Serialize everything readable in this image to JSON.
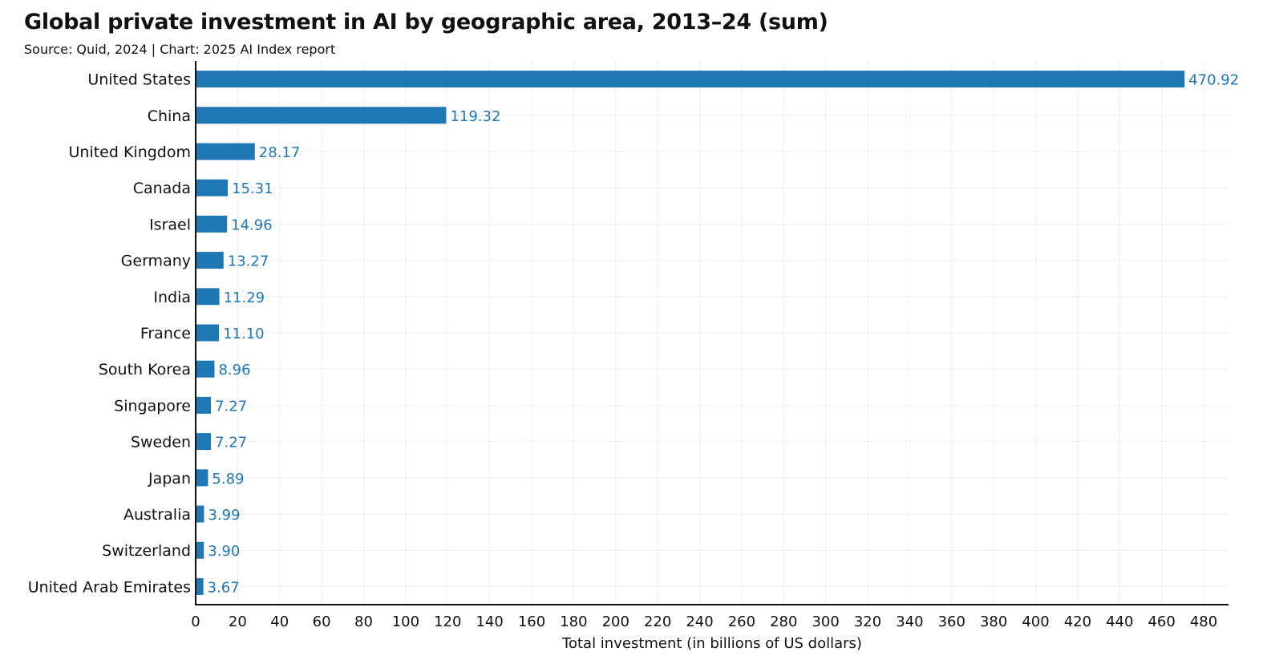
{
  "title": "Global private investment in AI by geographic area, 2013–24 (sum)",
  "subtitle": "Source: Quid, 2024 | Chart: 2025 AI Index report",
  "colors": {
    "bar": "#1f77b4",
    "label": "#1f77b4",
    "grid": "#eeeeee",
    "axis": "#111111"
  },
  "chart_data": {
    "type": "bar",
    "orientation": "horizontal",
    "categories": [
      "United States",
      "China",
      "United Kingdom",
      "Canada",
      "Israel",
      "Germany",
      "India",
      "France",
      "South Korea",
      "Singapore",
      "Sweden",
      "Japan",
      "Australia",
      "Switzerland",
      "United Arab Emirates"
    ],
    "values": [
      470.92,
      119.32,
      28.17,
      15.31,
      14.96,
      13.27,
      11.29,
      11.1,
      8.96,
      7.27,
      7.27,
      5.89,
      3.99,
      3.9,
      3.67
    ],
    "value_labels": [
      "470.92",
      "119.32",
      "28.17",
      "15.31",
      "14.96",
      "13.27",
      "11.29",
      "11.10",
      "8.96",
      "7.27",
      "7.27",
      "5.89",
      "3.99",
      "3.90",
      "3.67"
    ],
    "xlabel": "Total investment (in billions of US dollars)",
    "ylabel": "",
    "xlim": [
      0,
      500
    ],
    "xticks": [
      0,
      20,
      40,
      60,
      80,
      100,
      120,
      140,
      160,
      180,
      200,
      220,
      240,
      260,
      280,
      300,
      320,
      340,
      360,
      380,
      400,
      420,
      440,
      460,
      480
    ],
    "grid": true
  }
}
